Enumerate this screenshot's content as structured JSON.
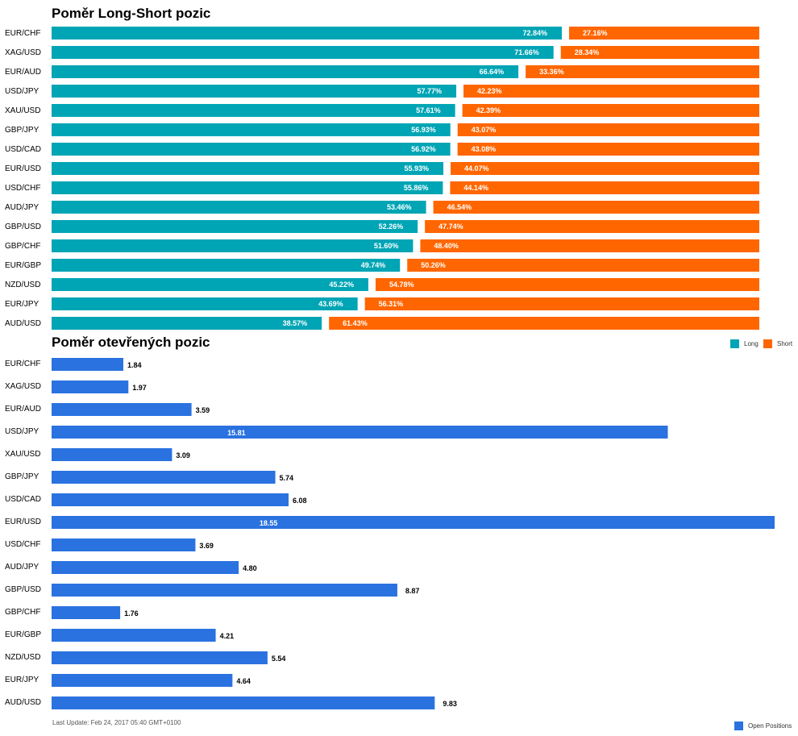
{
  "colors": {
    "long": "#00a5b5",
    "short": "#ff6600",
    "open": "#2a72e0"
  },
  "legend": {
    "long_label": "Long",
    "short_label": "Short",
    "open_label": "Open Positions"
  },
  "footer": {
    "last_update": "Last Update: Feb 24, 2017 05:40 GMT+0100"
  },
  "chart_data": [
    {
      "type": "bar",
      "orientation": "horizontal-stacked",
      "title": "Poměr Long-Short pozic",
      "categories": [
        "EUR/CHF",
        "XAG/USD",
        "EUR/AUD",
        "USD/JPY",
        "XAU/USD",
        "GBP/JPY",
        "USD/CAD",
        "EUR/USD",
        "USD/CHF",
        "AUD/JPY",
        "GBP/USD",
        "GBP/CHF",
        "EUR/GBP",
        "NZD/USD",
        "EUR/JPY",
        "AUD/USD"
      ],
      "series": [
        {
          "name": "Long",
          "values": [
            72.84,
            71.66,
            66.64,
            57.77,
            57.61,
            56.93,
            56.92,
            55.93,
            55.86,
            53.46,
            52.26,
            51.6,
            49.74,
            45.22,
            43.69,
            38.57
          ]
        },
        {
          "name": "Short",
          "values": [
            27.16,
            28.34,
            33.36,
            42.23,
            42.39,
            43.07,
            43.08,
            44.07,
            44.14,
            46.54,
            47.74,
            48.4,
            50.26,
            54.78,
            56.31,
            61.43
          ]
        }
      ],
      "value_labels": {
        "long": [
          "72.84%",
          "71.66%",
          "66.64%",
          "57.77%",
          "57.61%",
          "56.93%",
          "56.92%",
          "55.93%",
          "55.86%",
          "53.46%",
          "52.26%",
          "51.60%",
          "49.74%",
          "45.22%",
          "43.69%",
          "38.57%"
        ],
        "short": [
          "27.16%",
          "28.34%",
          "33.36%",
          "42.23%",
          "42.39%",
          "43.07%",
          "43.08%",
          "44.07%",
          "44.14%",
          "46.54%",
          "47.74%",
          "48.40%",
          "50.26%",
          "54.78%",
          "56.31%",
          "61.43%"
        ]
      },
      "xlim": [
        0,
        100
      ],
      "legend": "top-right"
    },
    {
      "type": "bar",
      "orientation": "horizontal",
      "title": "Poměr otevřených pozic",
      "categories": [
        "EUR/CHF",
        "XAG/USD",
        "EUR/AUD",
        "USD/JPY",
        "XAU/USD",
        "GBP/JPY",
        "USD/CAD",
        "EUR/USD",
        "USD/CHF",
        "AUD/JPY",
        "GBP/USD",
        "GBP/CHF",
        "EUR/GBP",
        "NZD/USD",
        "EUR/JPY",
        "AUD/USD"
      ],
      "series": [
        {
          "name": "Open Positions",
          "values": [
            1.84,
            1.97,
            3.59,
            15.81,
            3.09,
            5.74,
            6.08,
            18.55,
            3.69,
            4.8,
            8.87,
            1.76,
            4.21,
            5.54,
            4.64,
            9.83
          ]
        }
      ],
      "value_labels": [
        "1.84",
        "1.97",
        "3.59",
        "15.81",
        "3.09",
        "5.74",
        "6.08",
        "18.55",
        "3.69",
        "4.80",
        "8.87",
        "1.76",
        "4.21",
        "5.54",
        "4.64",
        "9.83"
      ],
      "xlim": [
        0,
        18.55
      ],
      "legend": "bottom-right"
    }
  ]
}
